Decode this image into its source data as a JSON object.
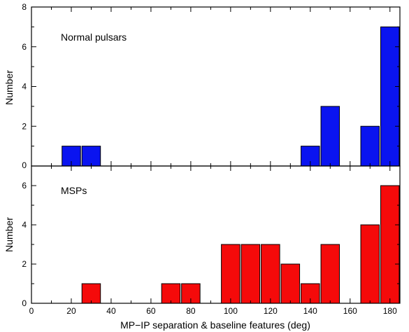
{
  "chart_data": [
    {
      "type": "bar",
      "annotation": "Normal pulsars",
      "ylabel": "Number",
      "xlim": [
        0,
        185
      ],
      "ylim": [
        0,
        8
      ],
      "yticks": [
        "0",
        "2",
        "4",
        "6",
        "8"
      ],
      "bar_width": 10,
      "color": "#0a14f0",
      "x": [
        20,
        30,
        140,
        150,
        170,
        180
      ],
      "values": [
        1,
        1,
        1,
        3,
        2,
        7
      ],
      "grid": false
    },
    {
      "type": "bar",
      "annotation": "MSPs",
      "ylabel": "Number",
      "xlabel": "MP−IP separation &  baseline features (deg)",
      "xlim": [
        0,
        185
      ],
      "ylim": [
        0,
        7
      ],
      "yticks": [
        "0",
        "2",
        "4",
        "6"
      ],
      "xticks": [
        "0",
        "20",
        "40",
        "60",
        "80",
        "100",
        "120",
        "140",
        "160",
        "180"
      ],
      "bar_width": 10,
      "color": "#f50a0a",
      "x": [
        30,
        70,
        80,
        100,
        110,
        120,
        130,
        140,
        150,
        170,
        180
      ],
      "values": [
        1,
        1,
        1,
        3,
        3,
        3,
        2,
        1,
        3,
        4,
        6
      ],
      "grid": false
    }
  ]
}
